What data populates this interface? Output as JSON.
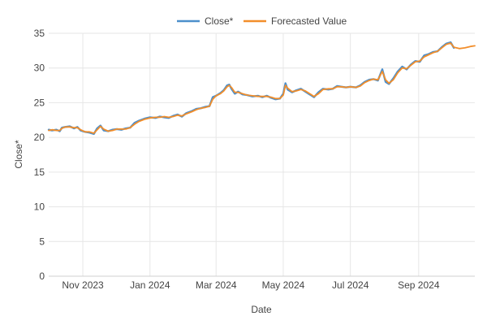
{
  "chart_data": {
    "type": "line",
    "xlabel": "Date",
    "ylabel": "Close*",
    "ylim": [
      0,
      35
    ],
    "xlim": [
      "2023-10-01",
      "2024-10-22"
    ],
    "y_ticks": [
      0,
      5,
      10,
      15,
      20,
      25,
      30,
      35
    ],
    "x_ticks": [
      {
        "date": "2023-11-01",
        "label": "Nov 2023"
      },
      {
        "date": "2024-01-01",
        "label": "Jan 2024"
      },
      {
        "date": "2024-03-01",
        "label": "Mar 2024"
      },
      {
        "date": "2024-05-01",
        "label": "May 2024"
      },
      {
        "date": "2024-07-01",
        "label": "Jul 2024"
      },
      {
        "date": "2024-09-01",
        "label": "Sep 2024"
      }
    ],
    "grid": true,
    "legend_position": "top-center",
    "series": [
      {
        "name": "Close*",
        "color": "#4c8fcb",
        "points": [
          [
            "2023-10-01",
            21.1
          ],
          [
            "2023-10-04",
            21.0
          ],
          [
            "2023-10-08",
            21.1
          ],
          [
            "2023-10-11",
            20.9
          ],
          [
            "2023-10-13",
            21.4
          ],
          [
            "2023-10-16",
            21.5
          ],
          [
            "2023-10-20",
            21.6
          ],
          [
            "2023-10-24",
            21.3
          ],
          [
            "2023-10-27",
            21.5
          ],
          [
            "2023-10-30",
            21.0
          ],
          [
            "2023-11-03",
            20.8
          ],
          [
            "2023-11-07",
            20.7
          ],
          [
            "2023-11-11",
            20.5
          ],
          [
            "2023-11-14",
            21.3
          ],
          [
            "2023-11-17",
            21.7
          ],
          [
            "2023-11-20",
            21.0
          ],
          [
            "2023-11-24",
            20.9
          ],
          [
            "2023-11-28",
            21.1
          ],
          [
            "2023-12-02",
            21.2
          ],
          [
            "2023-12-06",
            21.1
          ],
          [
            "2023-12-10",
            21.3
          ],
          [
            "2023-12-14",
            21.4
          ],
          [
            "2023-12-18",
            22.1
          ],
          [
            "2023-12-22",
            22.4
          ],
          [
            "2023-12-27",
            22.7
          ],
          [
            "2024-01-01",
            22.9
          ],
          [
            "2024-01-06",
            22.8
          ],
          [
            "2024-01-10",
            23.0
          ],
          [
            "2024-01-14",
            22.9
          ],
          [
            "2024-01-18",
            22.8
          ],
          [
            "2024-01-22",
            23.1
          ],
          [
            "2024-01-26",
            23.3
          ],
          [
            "2024-01-30",
            23.0
          ],
          [
            "2024-02-03",
            23.5
          ],
          [
            "2024-02-08",
            23.8
          ],
          [
            "2024-02-12",
            24.1
          ],
          [
            "2024-02-16",
            24.2
          ],
          [
            "2024-02-20",
            24.4
          ],
          [
            "2024-02-24",
            24.5
          ],
          [
            "2024-02-27",
            25.8
          ],
          [
            "2024-03-01",
            26.0
          ],
          [
            "2024-03-05",
            26.4
          ],
          [
            "2024-03-08",
            26.8
          ],
          [
            "2024-03-11",
            27.5
          ],
          [
            "2024-03-13",
            27.6
          ],
          [
            "2024-03-15",
            27.0
          ],
          [
            "2024-03-18",
            26.3
          ],
          [
            "2024-03-21",
            26.6
          ],
          [
            "2024-03-25",
            26.2
          ],
          [
            "2024-03-29",
            26.1
          ],
          [
            "2024-04-03",
            25.9
          ],
          [
            "2024-04-08",
            26.0
          ],
          [
            "2024-04-12",
            25.8
          ],
          [
            "2024-04-16",
            26.0
          ],
          [
            "2024-04-20",
            25.7
          ],
          [
            "2024-04-24",
            25.5
          ],
          [
            "2024-04-28",
            25.6
          ],
          [
            "2024-05-01",
            26.3
          ],
          [
            "2024-05-03",
            27.8
          ],
          [
            "2024-05-05",
            26.9
          ],
          [
            "2024-05-09",
            26.5
          ],
          [
            "2024-05-13",
            26.8
          ],
          [
            "2024-05-17",
            27.0
          ],
          [
            "2024-05-21",
            26.6
          ],
          [
            "2024-05-25",
            26.2
          ],
          [
            "2024-05-29",
            25.8
          ],
          [
            "2024-06-02",
            26.5
          ],
          [
            "2024-06-06",
            27.0
          ],
          [
            "2024-06-11",
            26.9
          ],
          [
            "2024-06-15",
            27.0
          ],
          [
            "2024-06-19",
            27.4
          ],
          [
            "2024-06-23",
            27.3
          ],
          [
            "2024-06-27",
            27.2
          ],
          [
            "2024-07-01",
            27.3
          ],
          [
            "2024-07-06",
            27.2
          ],
          [
            "2024-07-10",
            27.5
          ],
          [
            "2024-07-14",
            28.0
          ],
          [
            "2024-07-18",
            28.3
          ],
          [
            "2024-07-22",
            28.4
          ],
          [
            "2024-07-26",
            28.2
          ],
          [
            "2024-07-30",
            29.8
          ],
          [
            "2024-08-02",
            28.0
          ],
          [
            "2024-08-05",
            27.7
          ],
          [
            "2024-08-09",
            28.5
          ],
          [
            "2024-08-13",
            29.5
          ],
          [
            "2024-08-17",
            30.2
          ],
          [
            "2024-08-21",
            29.8
          ],
          [
            "2024-08-25",
            30.5
          ],
          [
            "2024-08-29",
            31.0
          ],
          [
            "2024-09-02",
            30.9
          ],
          [
            "2024-09-06",
            31.8
          ],
          [
            "2024-09-10",
            32.0
          ],
          [
            "2024-09-14",
            32.3
          ],
          [
            "2024-09-18",
            32.4
          ],
          [
            "2024-09-22",
            33.0
          ],
          [
            "2024-09-26",
            33.5
          ],
          [
            "2024-09-30",
            33.7
          ],
          [
            "2024-10-03",
            32.9
          ]
        ]
      },
      {
        "name": "Forecasted Value",
        "color": "#f28e2b",
        "points": [
          [
            "2023-10-01",
            21.0
          ],
          [
            "2023-10-04",
            21.1
          ],
          [
            "2023-10-08",
            21.0
          ],
          [
            "2023-10-11",
            21.0
          ],
          [
            "2023-10-13",
            21.3
          ],
          [
            "2023-10-16",
            21.5
          ],
          [
            "2023-10-20",
            21.5
          ],
          [
            "2023-10-24",
            21.4
          ],
          [
            "2023-10-27",
            21.4
          ],
          [
            "2023-10-30",
            21.1
          ],
          [
            "2023-11-03",
            20.8
          ],
          [
            "2023-11-07",
            20.8
          ],
          [
            "2023-11-11",
            20.6
          ],
          [
            "2023-11-14",
            21.1
          ],
          [
            "2023-11-17",
            21.6
          ],
          [
            "2023-11-20",
            21.2
          ],
          [
            "2023-11-24",
            20.9
          ],
          [
            "2023-11-28",
            21.0
          ],
          [
            "2023-12-02",
            21.2
          ],
          [
            "2023-12-06",
            21.2
          ],
          [
            "2023-12-10",
            21.2
          ],
          [
            "2023-12-14",
            21.4
          ],
          [
            "2023-12-18",
            21.9
          ],
          [
            "2023-12-22",
            22.3
          ],
          [
            "2023-12-27",
            22.6
          ],
          [
            "2024-01-01",
            22.8
          ],
          [
            "2024-01-06",
            22.9
          ],
          [
            "2024-01-10",
            22.9
          ],
          [
            "2024-01-14",
            23.0
          ],
          [
            "2024-01-18",
            22.9
          ],
          [
            "2024-01-22",
            23.0
          ],
          [
            "2024-01-26",
            23.2
          ],
          [
            "2024-01-30",
            23.1
          ],
          [
            "2024-02-03",
            23.4
          ],
          [
            "2024-02-08",
            23.7
          ],
          [
            "2024-02-12",
            24.0
          ],
          [
            "2024-02-16",
            24.2
          ],
          [
            "2024-02-20",
            24.3
          ],
          [
            "2024-02-24",
            24.5
          ],
          [
            "2024-02-27",
            25.5
          ],
          [
            "2024-03-01",
            26.0
          ],
          [
            "2024-03-05",
            26.3
          ],
          [
            "2024-03-08",
            26.7
          ],
          [
            "2024-03-11",
            27.3
          ],
          [
            "2024-03-13",
            27.5
          ],
          [
            "2024-03-15",
            27.2
          ],
          [
            "2024-03-18",
            26.5
          ],
          [
            "2024-03-21",
            26.5
          ],
          [
            "2024-03-25",
            26.3
          ],
          [
            "2024-03-29",
            26.1
          ],
          [
            "2024-04-03",
            26.0
          ],
          [
            "2024-04-08",
            25.9
          ],
          [
            "2024-04-12",
            25.9
          ],
          [
            "2024-04-16",
            25.9
          ],
          [
            "2024-04-20",
            25.8
          ],
          [
            "2024-04-24",
            25.6
          ],
          [
            "2024-04-28",
            25.6
          ],
          [
            "2024-05-01",
            26.1
          ],
          [
            "2024-05-03",
            27.5
          ],
          [
            "2024-05-05",
            27.1
          ],
          [
            "2024-05-09",
            26.6
          ],
          [
            "2024-05-13",
            26.7
          ],
          [
            "2024-05-17",
            26.9
          ],
          [
            "2024-05-21",
            26.7
          ],
          [
            "2024-05-25",
            26.3
          ],
          [
            "2024-05-29",
            25.9
          ],
          [
            "2024-06-02",
            26.3
          ],
          [
            "2024-06-06",
            26.9
          ],
          [
            "2024-06-11",
            27.0
          ],
          [
            "2024-06-15",
            27.0
          ],
          [
            "2024-06-19",
            27.3
          ],
          [
            "2024-06-23",
            27.3
          ],
          [
            "2024-06-27",
            27.2
          ],
          [
            "2024-07-01",
            27.3
          ],
          [
            "2024-07-06",
            27.2
          ],
          [
            "2024-07-10",
            27.4
          ],
          [
            "2024-07-14",
            27.9
          ],
          [
            "2024-07-18",
            28.2
          ],
          [
            "2024-07-22",
            28.4
          ],
          [
            "2024-07-26",
            28.3
          ],
          [
            "2024-07-30",
            29.5
          ],
          [
            "2024-08-02",
            28.3
          ],
          [
            "2024-08-05",
            27.8
          ],
          [
            "2024-08-09",
            28.3
          ],
          [
            "2024-08-13",
            29.3
          ],
          [
            "2024-08-17",
            30.0
          ],
          [
            "2024-08-21",
            29.9
          ],
          [
            "2024-08-25",
            30.4
          ],
          [
            "2024-08-29",
            30.9
          ],
          [
            "2024-09-02",
            31.0
          ],
          [
            "2024-09-06",
            31.6
          ],
          [
            "2024-09-10",
            31.9
          ],
          [
            "2024-09-14",
            32.2
          ],
          [
            "2024-09-18",
            32.4
          ],
          [
            "2024-09-22",
            32.9
          ],
          [
            "2024-09-26",
            33.4
          ],
          [
            "2024-09-30",
            33.6
          ],
          [
            "2024-10-03",
            33.0
          ],
          [
            "2024-10-08",
            32.8
          ],
          [
            "2024-10-13",
            32.9
          ],
          [
            "2024-10-18",
            33.1
          ],
          [
            "2024-10-22",
            33.2
          ]
        ]
      }
    ]
  }
}
